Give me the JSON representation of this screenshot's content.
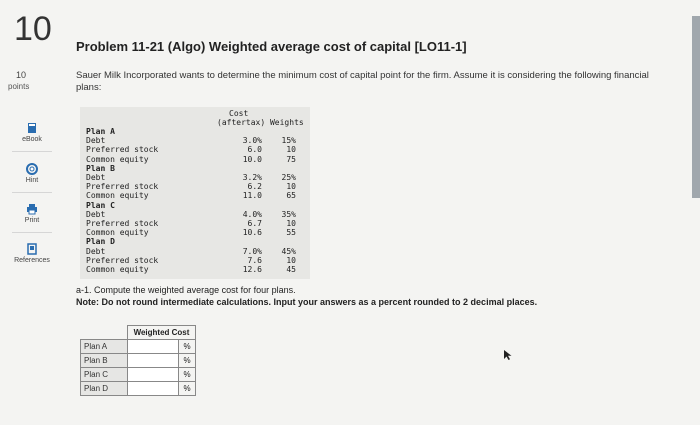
{
  "question": {
    "number": "10",
    "points_value": "10",
    "points_label": "points",
    "title": "Problem 11-21 (Algo) Weighted average cost of capital [LO11-1]",
    "intro": "Sauer Milk Incorporated wants to determine the minimum cost of capital point for the firm. Assume it is considering the following financial plans:"
  },
  "tools": [
    {
      "label": "eBook",
      "icon": "book-icon"
    },
    {
      "label": "Hint",
      "icon": "lifebuoy-icon"
    },
    {
      "label": "Print",
      "icon": "printer-icon"
    },
    {
      "label": "References",
      "icon": "references-icon"
    }
  ],
  "financing_table": {
    "header_line1": "Cost",
    "header_line2": "(aftertax) Weights",
    "rows": [
      {
        "c1": "Plan A",
        "c2": "",
        "c3": "",
        "plan": true
      },
      {
        "c1": "Debt",
        "c2": "3.0%",
        "c3": "15%"
      },
      {
        "c1": "Preferred stock",
        "c2": "6.0",
        "c3": "10"
      },
      {
        "c1": "Common equity",
        "c2": "10.0",
        "c3": "75"
      },
      {
        "c1": "Plan B",
        "c2": "",
        "c3": "",
        "plan": true
      },
      {
        "c1": "Debt",
        "c2": "3.2%",
        "c3": "25%"
      },
      {
        "c1": "Preferred stock",
        "c2": "6.2",
        "c3": "10"
      },
      {
        "c1": "Common equity",
        "c2": "11.0",
        "c3": "65"
      },
      {
        "c1": "Plan C",
        "c2": "",
        "c3": "",
        "plan": true
      },
      {
        "c1": "Debt",
        "c2": "4.0%",
        "c3": "35%"
      },
      {
        "c1": "Preferred stock",
        "c2": "6.7",
        "c3": "10"
      },
      {
        "c1": "Common equity",
        "c2": "10.6",
        "c3": "55"
      },
      {
        "c1": "Plan D",
        "c2": "",
        "c3": "",
        "plan": true
      },
      {
        "c1": "Debt",
        "c2": "7.0%",
        "c3": "45%"
      },
      {
        "c1": "Preferred stock",
        "c2": "7.6",
        "c3": "10"
      },
      {
        "c1": "Common equity",
        "c2": "12.6",
        "c3": "45"
      }
    ]
  },
  "instructions": {
    "part": "a-1. Compute the weighted average cost for four plans.",
    "note": "Note: Do not round intermediate calculations. Input your answers as a percent rounded to 2 decimal places."
  },
  "answer_table": {
    "header": "Weighted Cost",
    "percent_symbol": "%",
    "rows": [
      {
        "label": "Plan A",
        "value": ""
      },
      {
        "label": "Plan B",
        "value": ""
      },
      {
        "label": "Plan C",
        "value": ""
      },
      {
        "label": "Plan D",
        "value": ""
      }
    ]
  },
  "colors": {
    "accent": "#2a6db0",
    "scrollbar": "#a0a7ad"
  }
}
